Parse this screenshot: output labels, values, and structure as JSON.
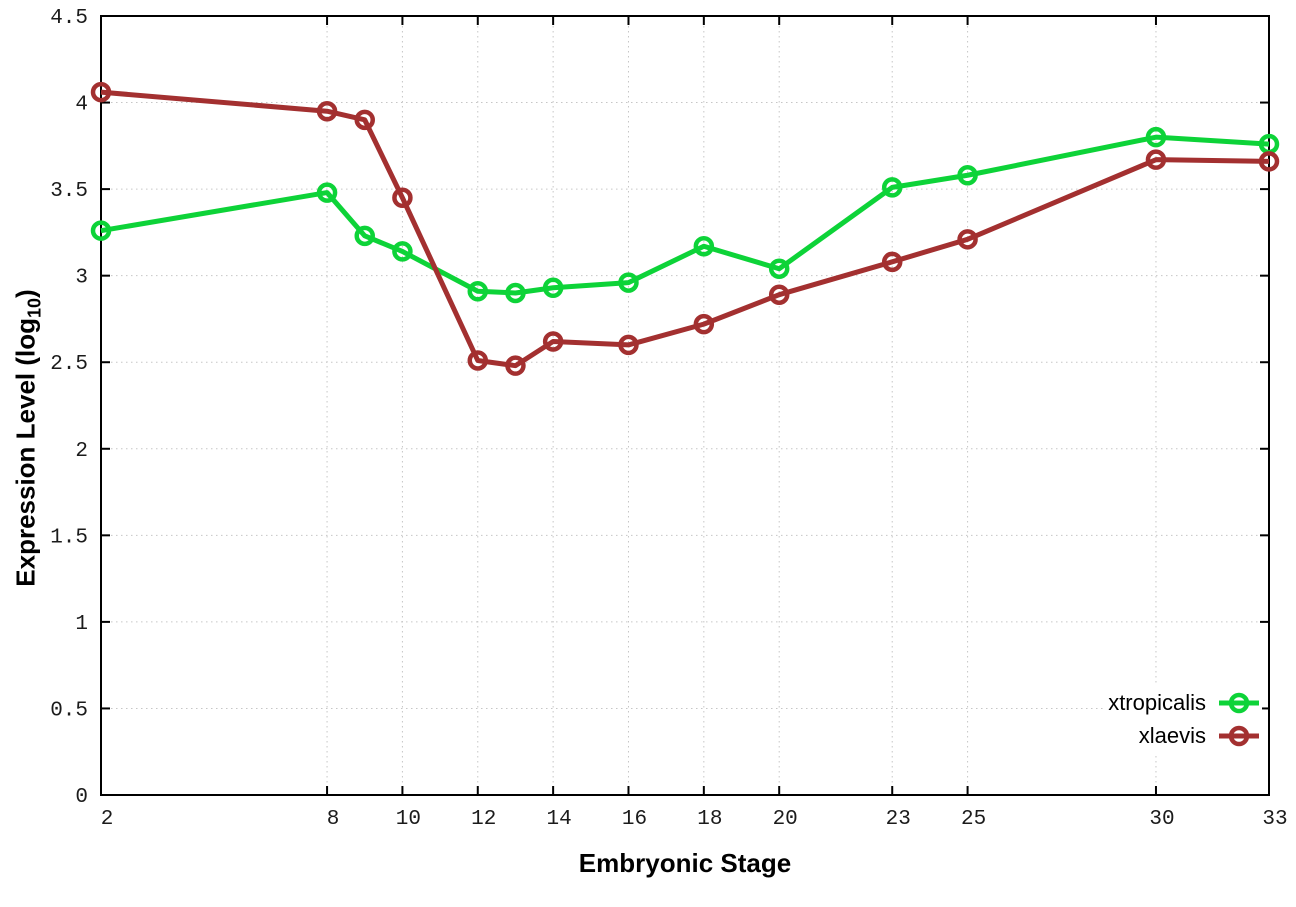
{
  "chart_data": {
    "type": "line",
    "title": "",
    "xlabel": "Embryonic Stage",
    "ylabel": {
      "main": "Expression Level (log",
      "sub": "10",
      "suffix": ")"
    },
    "xlim": [
      2,
      33
    ],
    "ylim": [
      0,
      4.5
    ],
    "grid": true,
    "legend_position": "bottom-right",
    "x": [
      2,
      8,
      9,
      10,
      12,
      13,
      14,
      16,
      18,
      20,
      23,
      25,
      30,
      33
    ],
    "x_ticks": [
      {
        "v": 2,
        "label": "2"
      },
      {
        "v": 8,
        "label": "8"
      },
      {
        "v": 10,
        "label": "10"
      },
      {
        "v": 12,
        "label": "12"
      },
      {
        "v": 14,
        "label": "14"
      },
      {
        "v": 16,
        "label": "16"
      },
      {
        "v": 18,
        "label": "18"
      },
      {
        "v": 20,
        "label": "20"
      },
      {
        "v": 23,
        "label": "23"
      },
      {
        "v": 25,
        "label": "25"
      },
      {
        "v": 30,
        "label": "30"
      },
      {
        "v": 33,
        "label": "33"
      }
    ],
    "y_ticks": [
      {
        "v": 0,
        "label": "0"
      },
      {
        "v": 0.5,
        "label": "0.5"
      },
      {
        "v": 1,
        "label": "1"
      },
      {
        "v": 1.5,
        "label": "1.5"
      },
      {
        "v": 2,
        "label": "2"
      },
      {
        "v": 2.5,
        "label": "2.5"
      },
      {
        "v": 3,
        "label": "3"
      },
      {
        "v": 3.5,
        "label": "3.5"
      },
      {
        "v": 4,
        "label": "4"
      },
      {
        "v": 4.5,
        "label": "4.5"
      }
    ],
    "series": [
      {
        "name": "xtropicalis",
        "color": "#0dd338",
        "values": [
          3.26,
          3.48,
          3.23,
          3.14,
          2.91,
          2.9,
          2.93,
          2.96,
          3.17,
          3.04,
          3.51,
          3.58,
          3.8,
          3.76
        ]
      },
      {
        "name": "xlaevis",
        "color": "#a33030",
        "values": [
          4.06,
          3.95,
          3.9,
          3.45,
          2.51,
          2.48,
          2.62,
          2.6,
          2.72,
          2.89,
          3.08,
          3.21,
          3.67,
          3.66
        ]
      }
    ],
    "colors": {
      "frame": "#000000",
      "grid": "#c6c6c6",
      "background": "#ffffff",
      "tick_text": "#1b1b1b"
    }
  }
}
